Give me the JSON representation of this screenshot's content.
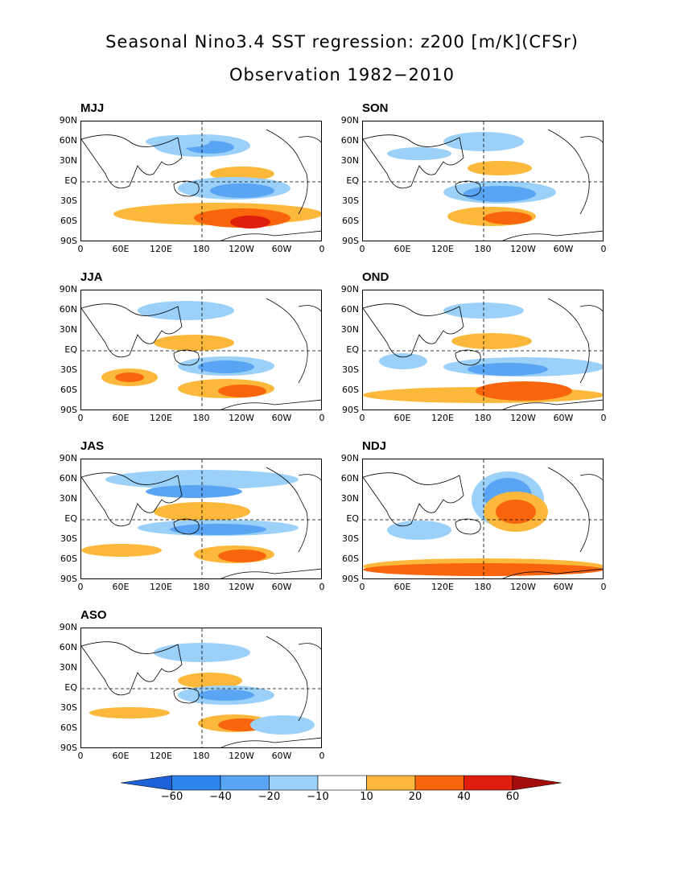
{
  "title_line1": "Seasonal Nino3.4 SST regression: z200 [m/K](CFSr)",
  "title_line2": "Observation 1982−2010",
  "lat_ticks": [
    "90N",
    "60N",
    "30N",
    "EQ",
    "30S",
    "60S",
    "90S"
  ],
  "lon_ticks": [
    "0",
    "60E",
    "120E",
    "180",
    "120W",
    "60W",
    "0"
  ],
  "panels": [
    {
      "label": "MJJ"
    },
    {
      "label": "SON"
    },
    {
      "label": "JJA"
    },
    {
      "label": "OND"
    },
    {
      "label": "JAS"
    },
    {
      "label": "NDJ"
    },
    {
      "label": "ASO"
    }
  ],
  "colorbar": {
    "ticks": [
      "−60",
      "−40",
      "−20",
      "−10",
      "10",
      "20",
      "40",
      "60"
    ],
    "colors": [
      "#1e60d8",
      "#2f85ee",
      "#5aa5f3",
      "#9bd0f8",
      "#ffffff",
      "#fbb83a",
      "#f8650c",
      "#e01e0e",
      "#a50c0c"
    ]
  },
  "colors": {
    "neg_light": "#9bd0f8",
    "neg_mid": "#5aa5f3",
    "neg_dark": "#2f85ee",
    "pos_light": "#fbb83a",
    "pos_mid": "#f8650c",
    "pos_dark": "#e01e0e"
  }
}
